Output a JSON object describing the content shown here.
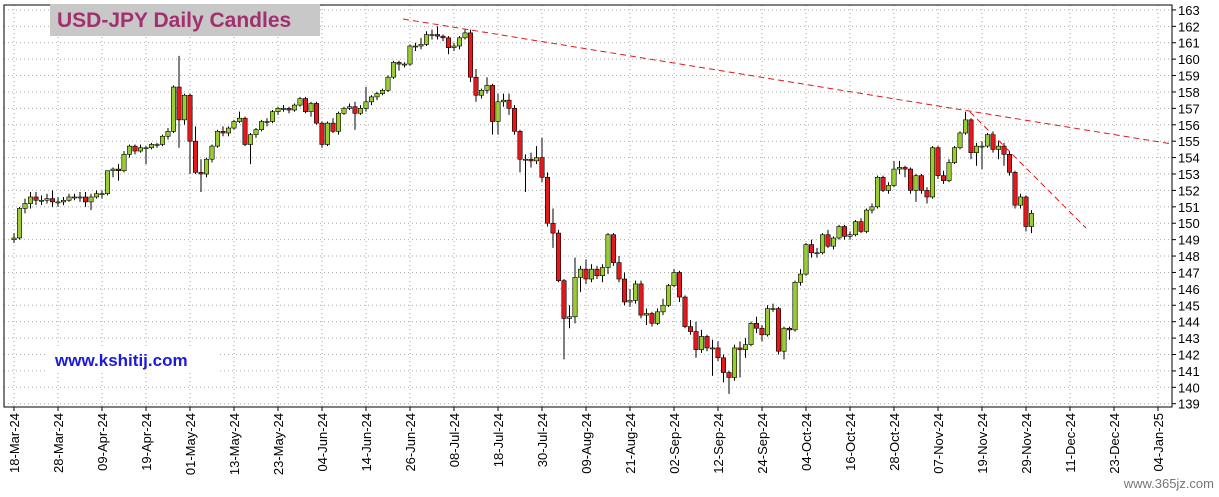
{
  "chart_data": {
    "type": "candlestick",
    "title": "USD-JPY Daily Candles",
    "source": "www.kshitij.com",
    "watermark": "www.365jz.com",
    "up_color": "#9acd32",
    "down_color": "#e3191c",
    "grid": true,
    "ylim": [
      138.8,
      163.3
    ],
    "yticks": [
      139,
      140,
      141,
      142,
      143,
      144,
      145,
      146,
      147,
      148,
      149,
      150,
      151,
      152,
      153,
      154,
      155,
      156,
      157,
      158,
      159,
      160,
      161,
      162,
      163
    ],
    "categories": [
      "18-Mar-24",
      null,
      null,
      null,
      null,
      null,
      null,
      null,
      "28-Mar-24",
      null,
      null,
      null,
      null,
      null,
      null,
      null,
      "09-Apr-24",
      null,
      null,
      null,
      null,
      null,
      null,
      null,
      "19-Apr-24",
      null,
      null,
      null,
      null,
      null,
      null,
      null,
      "01-May-24",
      null,
      null,
      null,
      null,
      null,
      null,
      null,
      "13-May-24",
      null,
      null,
      null,
      null,
      null,
      null,
      null,
      "23-May-24",
      null,
      null,
      null,
      null,
      null,
      null,
      null,
      "04-Jun-24",
      null,
      null,
      null,
      null,
      null,
      null,
      null,
      "14-Jun-24",
      null,
      null,
      null,
      null,
      null,
      null,
      null,
      "26-Jun-24",
      null,
      null,
      null,
      null,
      null,
      null,
      null,
      "08-Jul-24",
      null,
      null,
      null,
      null,
      null,
      null,
      null,
      "18-Jul-24",
      null,
      null,
      null,
      null,
      null,
      null,
      null,
      "30-Jul-24",
      null,
      null,
      null,
      null,
      null,
      null,
      null,
      "09-Aug-24",
      null,
      null,
      null,
      null,
      null,
      null,
      null,
      "21-Aug-24",
      null,
      null,
      null,
      null,
      null,
      null,
      null,
      "02-Sep-24",
      null,
      null,
      null,
      null,
      null,
      null,
      null,
      "12-Sep-24",
      null,
      null,
      null,
      null,
      null,
      null,
      null,
      "24-Sep-24",
      null,
      null,
      null,
      null,
      null,
      null,
      null,
      "04-Oct-24",
      null,
      null,
      null,
      null,
      null,
      null,
      null,
      "16-Oct-24",
      null,
      null,
      null,
      null,
      null,
      null,
      null,
      "28-Oct-24",
      null,
      null,
      null,
      null,
      null,
      null,
      null,
      "07-Nov-24",
      null,
      null,
      null,
      null,
      null,
      null,
      null,
      "19-Nov-24",
      null,
      null,
      null,
      null,
      null,
      null,
      null,
      "29-Nov-24",
      null,
      null,
      null,
      null,
      null,
      null,
      null,
      "11-Dec-24",
      null,
      null,
      null,
      null,
      null,
      null,
      null,
      "23-Dec-24",
      null,
      null,
      null,
      null,
      null,
      null,
      null,
      "04-Jan-25",
      null,
      null
    ],
    "open": [
      149.0,
      149.1,
      150.9,
      151.2,
      151.6,
      151.4,
      151.4,
      151.5,
      151.3,
      151.3,
      151.4,
      151.6,
      151.6,
      151.6,
      151.3,
      151.6,
      151.8,
      151.8,
      153.2,
      153.3,
      153.2,
      154.2,
      154.7,
      154.4,
      154.6,
      154.6,
      154.8,
      154.8,
      155.3,
      155.6,
      158.3,
      156.3,
      157.8,
      155.0,
      153.1,
      153.0,
      153.9,
      154.7,
      155.6,
      155.5,
      155.8,
      156.2,
      156.4,
      154.8,
      155.4,
      155.7,
      156.2,
      156.2,
      156.8,
      157.0,
      157.0,
      156.9,
      157.2,
      157.6,
      156.8,
      157.3,
      156.1,
      154.8,
      156.1,
      155.6,
      156.7,
      157.0,
      157.1,
      156.7,
      157.0,
      157.4,
      157.7,
      157.9,
      158.1,
      158.9,
      159.8,
      159.7,
      159.7,
      160.8,
      160.8,
      160.9,
      161.5,
      161.5,
      161.4,
      161.3,
      160.7,
      160.8,
      161.3,
      161.6,
      158.9,
      157.8,
      158.1,
      158.4,
      156.2,
      157.4,
      157.5,
      157.0,
      155.6,
      153.9,
      153.9,
      153.8,
      154.0,
      152.8,
      150.0,
      149.4,
      146.5,
      144.2,
      144.3,
      146.7,
      147.2,
      146.6,
      147.2,
      146.8,
      147.3,
      149.3,
      147.6,
      146.6,
      145.2,
      145.3,
      146.3,
      144.4,
      144.5,
      143.9,
      144.6,
      145.0,
      146.2,
      147.0,
      145.5,
      143.7,
      143.4,
      142.3,
      143.1,
      142.4,
      142.4,
      141.8,
      140.9,
      140.6,
      142.4,
      142.3,
      142.6,
      143.9,
      143.6,
      143.2,
      144.8,
      144.8,
      142.2,
      143.6,
      143.5,
      146.4,
      146.9,
      148.7,
      148.2,
      148.2,
      149.3,
      148.6,
      149.1,
      149.8,
      149.2,
      149.3,
      150.1,
      149.5,
      150.8,
      151.0,
      152.8,
      152.0,
      152.3,
      153.3,
      153.4,
      153.3,
      152.0,
      152.9,
      152.0,
      151.6,
      154.6,
      152.9,
      152.6,
      153.7,
      154.6,
      155.5,
      156.3,
      154.3,
      154.7,
      154.7,
      155.4,
      154.5,
      154.7,
      154.2,
      153.1,
      151.1,
      151.6,
      149.8,
      null,
      null,
      null,
      null,
      null,
      null,
      null,
      null,
      null,
      null,
      null,
      null,
      null,
      null,
      null,
      null,
      null,
      null,
      null,
      null,
      null,
      null,
      null,
      null,
      null
    ],
    "high": [
      149.4,
      151.0,
      151.5,
      151.9,
      151.9,
      151.7,
      151.8,
      152.0,
      151.6,
      151.6,
      151.8,
      151.8,
      151.9,
      151.9,
      151.8,
      152.0,
      152.0,
      153.2,
      153.4,
      153.6,
      154.4,
      154.8,
      154.8,
      154.8,
      154.7,
      154.9,
      154.9,
      155.4,
      155.8,
      158.4,
      160.2,
      157.9,
      157.9,
      155.9,
      153.9,
      154.0,
      154.8,
      155.7,
      155.9,
      155.9,
      156.3,
      156.8,
      156.5,
      155.5,
      155.8,
      156.3,
      156.4,
      156.9,
      157.1,
      157.2,
      157.1,
      157.3,
      157.7,
      157.7,
      157.4,
      157.4,
      156.2,
      156.2,
      156.4,
      156.8,
      157.1,
      157.3,
      157.4,
      157.2,
      158.3,
      157.8,
      158.0,
      158.2,
      159.0,
      159.9,
      159.9,
      159.8,
      160.9,
      161.0,
      161.3,
      161.7,
      161.8,
      162.0,
      161.5,
      161.4,
      161.0,
      161.4,
      161.8,
      161.8,
      159.4,
      158.2,
      158.9,
      158.5,
      157.9,
      157.9,
      157.9,
      157.2,
      155.7,
      154.2,
      154.3,
      154.7,
      155.2,
      153.1,
      150.9,
      149.6,
      146.6,
      145.0,
      147.9,
      147.4,
      147.8,
      147.5,
      147.4,
      147.5,
      149.4,
      149.4,
      148.0,
      147.0,
      146.0,
      146.5,
      146.5,
      144.8,
      144.6,
      144.8,
      145.4,
      146.3,
      147.2,
      147.1,
      145.6,
      144.1,
      144.0,
      143.5,
      143.2,
      142.9,
      142.8,
      142.0,
      141.0,
      142.6,
      142.8,
      143.0,
      144.0,
      144.3,
      143.8,
      145.0,
      145.1,
      144.9,
      143.7,
      143.7,
      146.5,
      147.2,
      148.8,
      149.0,
      148.5,
      149.4,
      149.6,
      149.2,
      149.9,
      149.9,
      149.5,
      150.2,
      150.3,
      150.9,
      151.2,
      152.9,
      152.9,
      152.5,
      153.8,
      153.8,
      153.5,
      153.4,
      153.0,
      153.0,
      152.2,
      154.7,
      154.7,
      153.2,
      153.9,
      154.7,
      155.6,
      156.8,
      156.4,
      154.9,
      155.0,
      155.5,
      155.6,
      155.0,
      154.9,
      154.4,
      153.2,
      151.8,
      151.7,
      150.8,
      null,
      null,
      null,
      null,
      null,
      null,
      null,
      null,
      null,
      null,
      null,
      null,
      null,
      null,
      null,
      null,
      null,
      null,
      null,
      null,
      null,
      null,
      null,
      null,
      null
    ],
    "low": [
      148.8,
      149.0,
      150.6,
      150.9,
      151.1,
      151.1,
      151.2,
      151.0,
      151.0,
      151.1,
      151.3,
      151.4,
      151.3,
      151.0,
      150.8,
      151.5,
      151.5,
      151.7,
      152.8,
      152.6,
      153.1,
      154.0,
      154.2,
      154.3,
      153.6,
      154.5,
      154.6,
      154.7,
      155.1,
      155.5,
      154.6,
      156.0,
      153.0,
      153.0,
      151.9,
      152.8,
      153.7,
      154.6,
      155.3,
      155.3,
      155.7,
      156.1,
      154.7,
      153.6,
      155.2,
      155.6,
      155.9,
      156.1,
      156.6,
      156.8,
      156.7,
      156.8,
      157.1,
      156.7,
      156.5,
      156.0,
      154.6,
      154.7,
      155.5,
      155.4,
      156.6,
      156.9,
      155.7,
      156.6,
      156.8,
      157.2,
      157.5,
      157.8,
      158.0,
      158.8,
      159.3,
      159.5,
      159.6,
      160.5,
      160.6,
      160.8,
      161.2,
      161.2,
      161.1,
      160.3,
      160.5,
      160.6,
      161.2,
      158.6,
      157.4,
      157.6,
      157.9,
      155.4,
      155.4,
      157.1,
      156.6,
      155.4,
      153.1,
      151.9,
      153.4,
      153.6,
      152.5,
      149.8,
      148.5,
      146.4,
      141.7,
      143.6,
      143.9,
      145.8,
      146.3,
      146.4,
      146.6,
      146.4,
      146.9,
      147.4,
      146.4,
      145.0,
      144.9,
      145.1,
      144.2,
      143.8,
      143.7,
      143.8,
      144.4,
      144.9,
      146.1,
      145.2,
      143.6,
      143.2,
      141.8,
      142.1,
      142.2,
      140.7,
      141.6,
      140.3,
      139.6,
      140.4,
      140.6,
      141.8,
      142.5,
      143.3,
      142.8,
      143.1,
      144.6,
      142.0,
      141.7,
      142.9,
      143.4,
      146.2,
      146.8,
      147.9,
      147.9,
      148.1,
      148.5,
      148.4,
      149.0,
      149.0,
      149.0,
      149.2,
      149.4,
      149.4,
      150.6,
      150.9,
      151.9,
      151.8,
      152.2,
      153.0,
      152.8,
      151.8,
      151.3,
      151.8,
      151.2,
      151.5,
      152.7,
      152.4,
      152.5,
      153.6,
      154.5,
      155.4,
      153.9,
      153.5,
      153.3,
      154.6,
      154.3,
      153.9,
      153.5,
      152.9,
      150.9,
      150.9,
      149.5,
      149.4,
      null,
      null,
      null,
      null,
      null,
      null,
      null,
      null,
      null,
      null,
      null,
      null,
      null,
      null,
      null,
      null,
      null,
      null,
      null,
      null,
      null,
      null,
      null,
      null,
      null
    ],
    "close": [
      149.1,
      150.9,
      151.2,
      151.6,
      151.4,
      151.4,
      151.5,
      151.3,
      151.3,
      151.4,
      151.6,
      151.6,
      151.6,
      151.3,
      151.6,
      151.8,
      151.8,
      153.2,
      153.3,
      153.2,
      154.2,
      154.7,
      154.4,
      154.6,
      154.6,
      154.8,
      154.8,
      155.3,
      155.6,
      158.3,
      156.3,
      157.8,
      155.0,
      153.1,
      153.0,
      153.9,
      154.7,
      155.6,
      155.5,
      155.8,
      156.2,
      156.4,
      154.8,
      155.4,
      155.7,
      156.2,
      156.2,
      156.8,
      157.0,
      157.0,
      156.9,
      157.2,
      157.6,
      156.8,
      157.3,
      156.1,
      154.8,
      156.1,
      155.6,
      156.7,
      157.0,
      157.1,
      156.7,
      157.0,
      157.4,
      157.7,
      157.9,
      158.1,
      158.9,
      159.8,
      159.7,
      159.7,
      160.8,
      160.8,
      160.9,
      161.5,
      161.5,
      161.4,
      161.3,
      160.7,
      160.8,
      161.3,
      161.6,
      158.9,
      157.8,
      158.1,
      158.4,
      156.2,
      157.4,
      157.5,
      157.0,
      155.6,
      153.9,
      153.9,
      153.8,
      154.0,
      152.8,
      150.0,
      149.4,
      146.5,
      144.2,
      144.3,
      146.7,
      147.2,
      146.6,
      147.2,
      146.8,
      147.3,
      149.3,
      147.6,
      146.6,
      145.2,
      145.3,
      146.3,
      144.4,
      144.5,
      143.9,
      144.6,
      145.0,
      146.2,
      147.0,
      145.5,
      143.7,
      143.4,
      142.3,
      143.1,
      142.4,
      142.4,
      141.8,
      140.9,
      140.6,
      142.4,
      142.3,
      142.6,
      143.9,
      143.6,
      143.2,
      144.8,
      144.8,
      142.2,
      143.6,
      143.5,
      146.4,
      146.9,
      148.7,
      148.2,
      148.2,
      149.3,
      148.6,
      149.1,
      149.8,
      149.2,
      149.3,
      150.1,
      149.5,
      150.8,
      151.0,
      152.8,
      152.0,
      152.3,
      153.3,
      153.4,
      153.3,
      152.0,
      152.9,
      152.0,
      151.6,
      154.6,
      152.9,
      152.6,
      153.7,
      154.6,
      155.5,
      156.3,
      154.3,
      154.7,
      154.7,
      155.4,
      154.5,
      154.7,
      154.2,
      153.1,
      151.1,
      151.6,
      149.8,
      150.6,
      null,
      null,
      null,
      null,
      null,
      null,
      null,
      null,
      null,
      null,
      null,
      null,
      null,
      null,
      null,
      null,
      null,
      null,
      null,
      null,
      null,
      null,
      null,
      null,
      null
    ]
  }
}
